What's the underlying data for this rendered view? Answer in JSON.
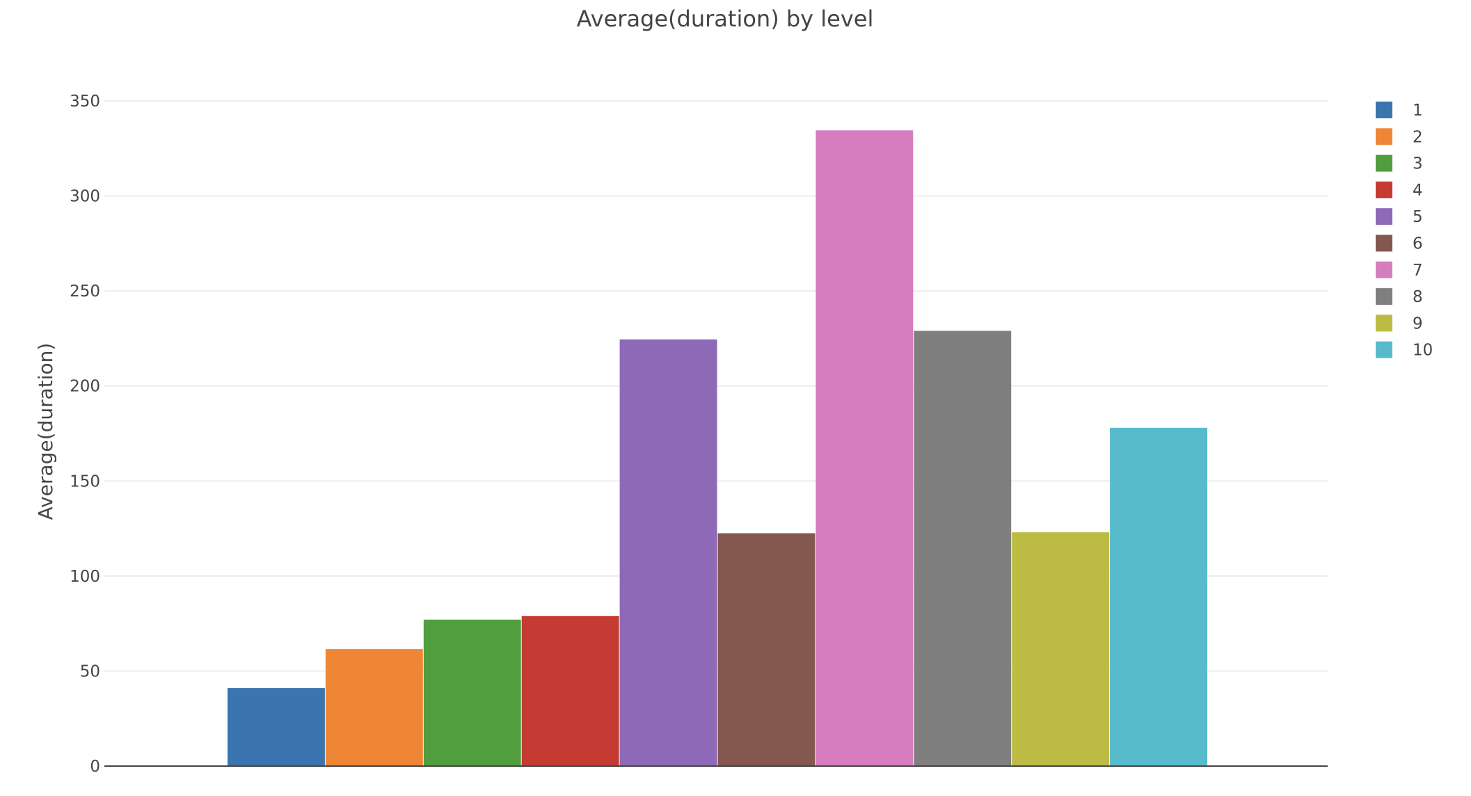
{
  "chart_data": {
    "type": "bar",
    "title": "Average(duration) by level",
    "xlabel": "",
    "ylabel": "Average(duration)",
    "ylim": [
      0,
      350
    ],
    "yticks": [
      0,
      50,
      100,
      150,
      200,
      250,
      300,
      350
    ],
    "grid": true,
    "legend_position": "top-right",
    "series": [
      {
        "name": "1",
        "value": 41,
        "color": "#3b75af"
      },
      {
        "name": "2",
        "value": 61.5,
        "color": "#ef8636"
      },
      {
        "name": "3",
        "value": 77,
        "color": "#519e3e"
      },
      {
        "name": "4",
        "value": 79,
        "color": "#c53a32"
      },
      {
        "name": "5",
        "value": 224.5,
        "color": "#8d69b8"
      },
      {
        "name": "6",
        "value": 122.5,
        "color": "#84584e"
      },
      {
        "name": "7",
        "value": 334.5,
        "color": "#d57dbe"
      },
      {
        "name": "8",
        "value": 229,
        "color": "#7f7f7f"
      },
      {
        "name": "9",
        "value": 123,
        "color": "#bcbc45"
      },
      {
        "name": "10",
        "value": 178,
        "color": "#58bbcc"
      }
    ]
  }
}
